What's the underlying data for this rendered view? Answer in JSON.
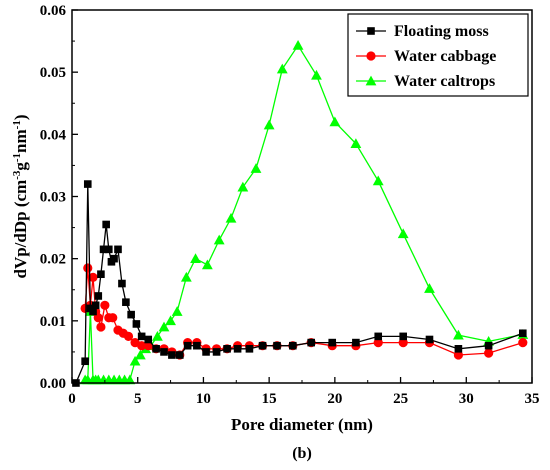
{
  "chart_data": {
    "type": "line",
    "xlabel": "Pore diameter (nm)",
    "ylabel": "dVp/dDp (cm-3g-1nm-1)",
    "ylabel_parts": [
      "dVp/dDp (cm",
      "-3",
      "g",
      "-1",
      "nm",
      "-1",
      ")"
    ],
    "caption": "(b)",
    "xlim": [
      0,
      35
    ],
    "ylim": [
      0,
      0.06
    ],
    "x_ticks": [
      0,
      5,
      10,
      15,
      20,
      25,
      30,
      35
    ],
    "y_ticks": [
      0.0,
      0.01,
      0.02,
      0.03,
      0.04,
      0.05,
      0.06
    ],
    "y_tick_labels": [
      "0.00",
      "0.01",
      "0.02",
      "0.03",
      "0.04",
      "0.05",
      "0.06"
    ],
    "legend_position": "top-right",
    "series": [
      {
        "name": "Floating moss",
        "color": "#000000",
        "marker": "square",
        "x": [
          0.3,
          1.0,
          1.2,
          1.4,
          1.6,
          1.8,
          2.0,
          2.2,
          2.4,
          2.6,
          2.8,
          3.0,
          3.2,
          3.5,
          3.8,
          4.1,
          4.5,
          4.9,
          5.3,
          5.8,
          6.4,
          7.0,
          7.6,
          8.2,
          8.8,
          9.5,
          10.2,
          11.0,
          11.8,
          12.6,
          13.5,
          14.5,
          15.6,
          16.8,
          18.2,
          19.8,
          21.6,
          23.3,
          25.2,
          27.2,
          29.4,
          31.7,
          34.3
        ],
        "y": [
          0.0,
          0.0035,
          0.032,
          0.012,
          0.0115,
          0.0125,
          0.014,
          0.0175,
          0.0215,
          0.0255,
          0.0215,
          0.0195,
          0.02,
          0.0215,
          0.016,
          0.013,
          0.011,
          0.0095,
          0.0075,
          0.007,
          0.0055,
          0.005,
          0.0045,
          0.0045,
          0.006,
          0.006,
          0.005,
          0.005,
          0.0055,
          0.0055,
          0.0055,
          0.006,
          0.006,
          0.006,
          0.0065,
          0.0065,
          0.0065,
          0.0075,
          0.0075,
          0.007,
          0.0055,
          0.006,
          0.008
        ]
      },
      {
        "name": "Water cabbage",
        "color": "#ff0000",
        "marker": "circle",
        "x": [
          1.0,
          1.2,
          1.4,
          1.6,
          1.8,
          2.0,
          2.2,
          2.5,
          2.8,
          3.1,
          3.5,
          3.9,
          4.3,
          4.8,
          5.3,
          5.8,
          6.4,
          7.0,
          7.6,
          8.2,
          8.8,
          9.5,
          10.2,
          11.0,
          11.8,
          12.6,
          13.5,
          14.5,
          15.6,
          16.8,
          18.2,
          19.8,
          21.6,
          23.3,
          25.2,
          27.2,
          29.4,
          31.7,
          34.3
        ],
        "y": [
          0.012,
          0.0185,
          0.0125,
          0.017,
          0.0115,
          0.0105,
          0.009,
          0.0125,
          0.0105,
          0.0105,
          0.0085,
          0.008,
          0.0075,
          0.0065,
          0.006,
          0.006,
          0.0055,
          0.0055,
          0.005,
          0.0045,
          0.0065,
          0.0065,
          0.0055,
          0.0055,
          0.0055,
          0.006,
          0.006,
          0.006,
          0.006,
          0.006,
          0.0065,
          0.006,
          0.006,
          0.0065,
          0.0065,
          0.0065,
          0.0045,
          0.0048,
          0.0065
        ]
      },
      {
        "name": "Water caltrops",
        "color": "#00ff00",
        "marker": "triangle",
        "x": [
          1.0,
          1.2,
          1.4,
          1.6,
          1.8,
          2.0,
          2.4,
          2.8,
          3.2,
          3.6,
          4.0,
          4.4,
          4.8,
          5.2,
          5.6,
          6.0,
          6.5,
          7.0,
          7.5,
          8.0,
          8.7,
          9.4,
          10.3,
          11.2,
          12.1,
          13.0,
          14.0,
          15.0,
          16.0,
          17.2,
          18.6,
          20.0,
          21.6,
          23.3,
          25.2,
          27.2,
          29.4,
          31.7,
          34.3
        ],
        "y": [
          0.0005,
          0.0005,
          0.0115,
          0.0005,
          0.0005,
          0.0005,
          0.0005,
          0.0005,
          0.0005,
          0.0005,
          0.0005,
          0.0005,
          0.0035,
          0.0045,
          0.0055,
          0.006,
          0.0075,
          0.009,
          0.01,
          0.0115,
          0.017,
          0.02,
          0.019,
          0.023,
          0.0265,
          0.0315,
          0.0345,
          0.0415,
          0.0505,
          0.0543,
          0.0495,
          0.042,
          0.0385,
          0.0325,
          0.024,
          0.0152,
          0.0077,
          0.0067,
          0.0078
        ]
      }
    ]
  }
}
